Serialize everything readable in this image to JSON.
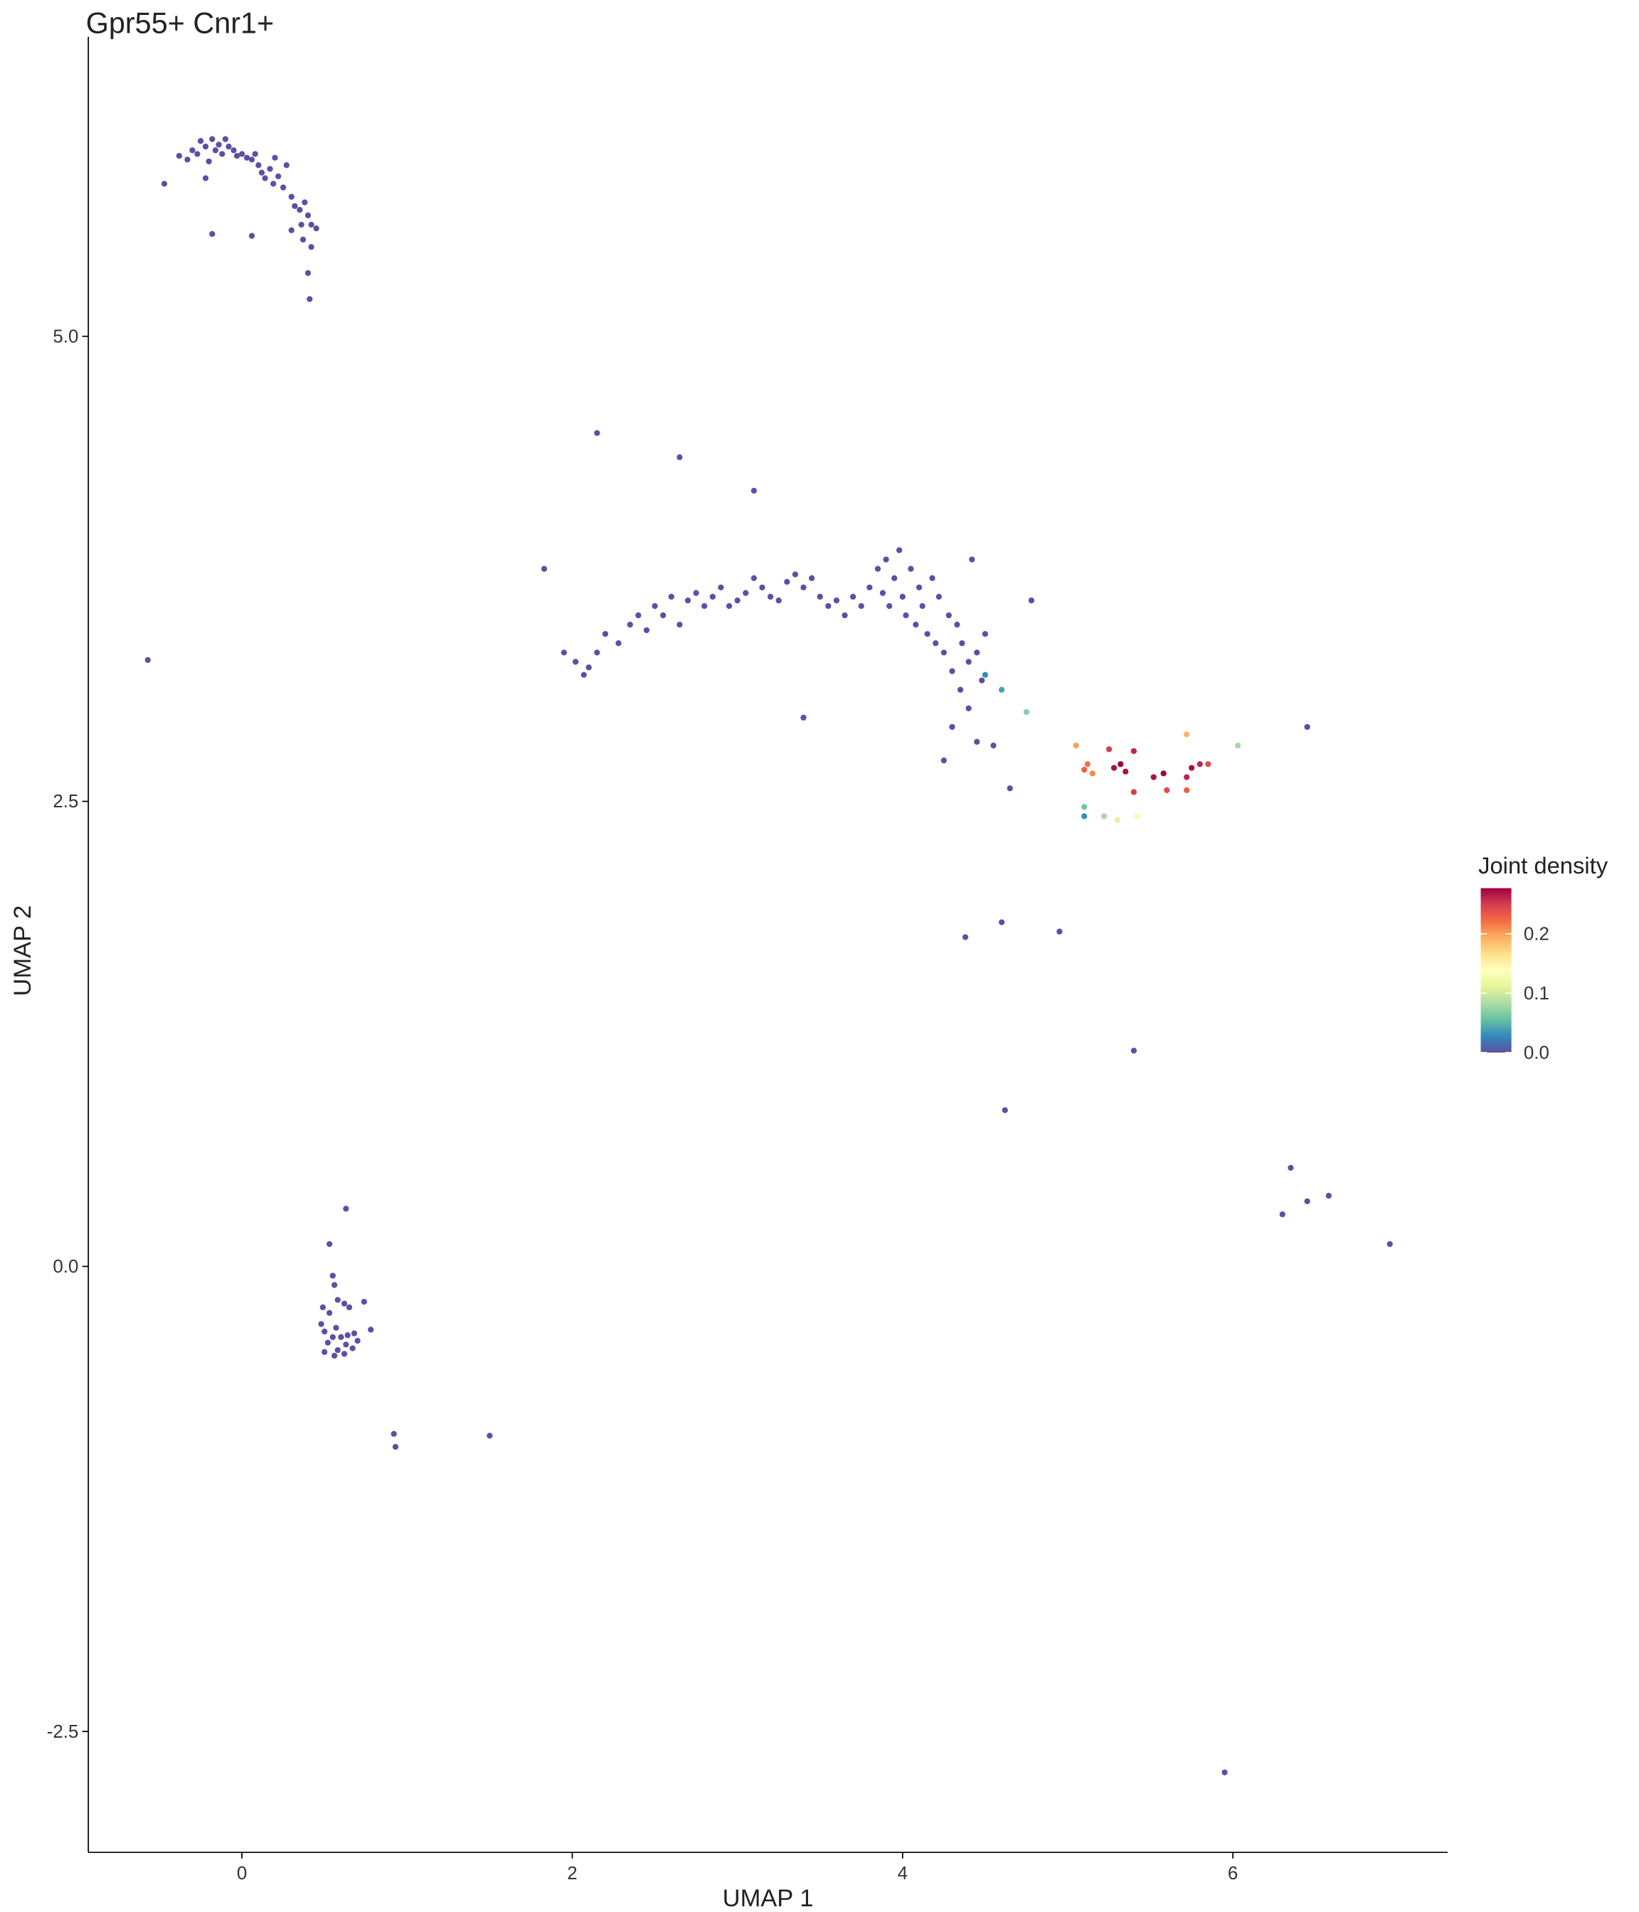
{
  "chart_data": {
    "type": "scatter",
    "title": "Gpr55+ Cnr1+",
    "x_label": "UMAP 1",
    "y_label": "UMAP 2",
    "legend_title": "Joint density",
    "xlim": [
      -0.93,
      7.3
    ],
    "ylim": [
      -3.15,
      6.61
    ],
    "xticks": [
      0,
      2,
      4,
      6
    ],
    "yticks": [
      {
        "value": -2.5,
        "label": "-2.5"
      },
      {
        "value": 0,
        "label": "0.0"
      },
      2.5,
      {
        "value": 5,
        "label": "5.0"
      }
    ],
    "colorlim": [
      0,
      0.277
    ],
    "colorticks": [
      {
        "value": 0,
        "label": "0.0"
      },
      0.1,
      0.2
    ],
    "colors": [
      "#5E4FA2",
      "#3288BD",
      "#66C2A5",
      "#ABDDA4",
      "#E6F598",
      "#FFFFBF",
      "#FEE08B",
      "#FDAE61",
      "#F46D43",
      "#D53E4F",
      "#9E0142"
    ],
    "grid": false,
    "x": [
      -0.47,
      -0.38,
      -0.33,
      -0.3,
      -0.27,
      -0.25,
      -0.22,
      -0.2,
      -0.18,
      -0.16,
      -0.14,
      -0.12,
      -0.1,
      -0.08,
      -0.05,
      -0.03,
      0,
      0.03,
      0.06,
      0.08,
      0.1,
      0.12,
      0.14,
      0.17,
      0.19,
      0.2,
      0.22,
      0.25,
      0.27,
      0.3,
      0.32,
      0.35,
      0.36,
      0.38,
      0.4,
      0.42,
      0.45,
      0.37,
      0.3,
      -0.18,
      0.06,
      0.4,
      0.41,
      0.42,
      -0.22,
      1.95,
      2.02,
      2.07,
      2.1,
      2.15,
      2.2,
      2.28,
      2.35,
      2.4,
      2.45,
      2.5,
      2.55,
      2.6,
      2.65,
      2.7,
      2.75,
      2.8,
      2.85,
      2.9,
      2.95,
      3.0,
      3.05,
      3.1,
      3.15,
      3.2,
      3.25,
      3.3,
      3.35,
      3.4,
      3.45,
      3.5,
      3.55,
      3.6,
      3.65,
      3.7,
      3.75,
      3.8,
      3.85,
      3.88,
      3.9,
      3.92,
      3.95,
      3.98,
      4.0,
      4.02,
      4.05,
      4.08,
      4.1,
      4.12,
      4.15,
      4.18,
      4.2,
      4.22,
      4.25,
      4.28,
      4.3,
      4.33,
      4.36,
      4.4,
      4.42,
      4.45,
      4.48,
      4.5,
      4.35,
      4.4,
      4.3,
      4.25,
      4.45,
      4.55,
      4.5,
      4.6,
      4.75,
      3.4,
      1.83,
      2.15,
      2.65,
      3.1,
      4.78,
      -0.57,
      5.05,
      5.12,
      5.15,
      5.1,
      5.25,
      5.28,
      5.32,
      5.35,
      5.4,
      5.4,
      5.52,
      5.58,
      5.6,
      5.72,
      5.75,
      5.8,
      5.85,
      5.72,
      5.72,
      6.03,
      5.1,
      5.1,
      5.22,
      5.3,
      5.42,
      6.45,
      4.65,
      4.38,
      4.6,
      4.95,
      5.4,
      4.62,
      6.35,
      6.3,
      6.45,
      6.58,
      6.95,
      5.95,
      0.92,
      0.93,
      1.5,
      0.63,
      0.53,
      0.55,
      0.56,
      0.58,
      0.62,
      0.65,
      0.74,
      0.49,
      0.53,
      0.48,
      0.5,
      0.57,
      0.6,
      0.64,
      0.68,
      0.78,
      0.52,
      0.58,
      0.63,
      0.67,
      0.5,
      0.56,
      0.62,
      0.7,
      0.55
    ],
    "y": [
      5.82,
      5.97,
      5.95,
      6.0,
      5.98,
      6.05,
      6.02,
      5.94,
      6.06,
      6.0,
      6.03,
      5.98,
      6.06,
      6.02,
      6.0,
      5.97,
      5.98,
      5.96,
      5.95,
      5.98,
      5.92,
      5.88,
      5.85,
      5.9,
      5.82,
      5.96,
      5.86,
      5.8,
      5.92,
      5.75,
      5.7,
      5.68,
      5.6,
      5.72,
      5.65,
      5.6,
      5.58,
      5.52,
      5.57,
      5.55,
      5.54,
      5.34,
      5.2,
      5.48,
      5.85,
      3.3,
      3.25,
      3.18,
      3.22,
      3.3,
      3.4,
      3.35,
      3.45,
      3.5,
      3.42,
      3.55,
      3.5,
      3.6,
      3.45,
      3.58,
      3.62,
      3.55,
      3.6,
      3.65,
      3.55,
      3.58,
      3.62,
      3.7,
      3.65,
      3.6,
      3.58,
      3.68,
      3.72,
      3.65,
      3.7,
      3.6,
      3.55,
      3.58,
      3.5,
      3.6,
      3.55,
      3.65,
      3.75,
      3.62,
      3.8,
      3.55,
      3.7,
      3.85,
      3.6,
      3.5,
      3.75,
      3.45,
      3.65,
      3.55,
      3.4,
      3.7,
      3.35,
      3.6,
      3.3,
      3.5,
      3.2,
      3.45,
      3.35,
      3.25,
      3.8,
      3.3,
      3.15,
      3.4,
      3.1,
      3.0,
      2.9,
      2.72,
      2.82,
      2.8,
      3.18,
      3.1,
      2.98,
      2.95,
      3.75,
      4.48,
      4.35,
      4.17,
      3.58,
      3.26,
      2.8,
      2.7,
      2.65,
      2.67,
      2.78,
      2.68,
      2.7,
      2.66,
      2.77,
      2.55,
      2.63,
      2.65,
      2.56,
      2.63,
      2.68,
      2.7,
      2.7,
      2.56,
      2.86,
      2.8,
      2.47,
      2.42,
      2.42,
      2.4,
      2.42,
      2.9,
      2.57,
      1.77,
      1.85,
      1.8,
      1.16,
      0.84,
      0.53,
      0.28,
      0.35,
      0.38,
      0.12,
      -2.72,
      -0.9,
      -0.97,
      -0.91,
      0.31,
      0.12,
      -0.05,
      -0.1,
      -0.18,
      -0.2,
      -0.22,
      -0.19,
      -0.22,
      -0.25,
      -0.31,
      -0.35,
      -0.33,
      -0.38,
      -0.37,
      -0.36,
      -0.34,
      -0.41,
      -0.45,
      -0.42,
      -0.44,
      -0.46,
      -0.48,
      -0.47,
      -0.4,
      -0.38
    ],
    "values": [
      0,
      0,
      0,
      0,
      0,
      0,
      0,
      0,
      0,
      0,
      0,
      0,
      0,
      0,
      0,
      0,
      0,
      0,
      0,
      0,
      0,
      0,
      0,
      0,
      0,
      0,
      0,
      0,
      0,
      0,
      0,
      0,
      0,
      0,
      0,
      0,
      0,
      0,
      0,
      0,
      0,
      0,
      0,
      0,
      0,
      0,
      0,
      0,
      0,
      0,
      0,
      0,
      0,
      0,
      0,
      0,
      0,
      0,
      0,
      0,
      0,
      0,
      0,
      0,
      0,
      0,
      0,
      0,
      0,
      0,
      0,
      0,
      0,
      0,
      0,
      0,
      0,
      0,
      0,
      0,
      0,
      0,
      0,
      0,
      0,
      0,
      0,
      0,
      0,
      0,
      0,
      0,
      0,
      0,
      0,
      0,
      0,
      0,
      0,
      0,
      0,
      0,
      0,
      0,
      0,
      0,
      0,
      0,
      0,
      0,
      0,
      0,
      0,
      0,
      0.03,
      0.04,
      0.07,
      0,
      0,
      0,
      0,
      0,
      0,
      0,
      0.2,
      0.22,
      0.21,
      0.23,
      0.25,
      0.27,
      0.28,
      0.27,
      0.26,
      0.25,
      0.27,
      0.28,
      0.24,
      0.26,
      0.27,
      0.26,
      0.24,
      0.23,
      0.19,
      0.08,
      0.06,
      0.03,
      0.08,
      0.11,
      0.13,
      0,
      0,
      0,
      0,
      0,
      0,
      0,
      0,
      0,
      0,
      0,
      0,
      0,
      0,
      0,
      0,
      0,
      0,
      0,
      0,
      0,
      0,
      0,
      0,
      0,
      0,
      0,
      0,
      0,
      0,
      0,
      0,
      0,
      0,
      0,
      0,
      0,
      0,
      0,
      0,
      0,
      0
    ]
  }
}
